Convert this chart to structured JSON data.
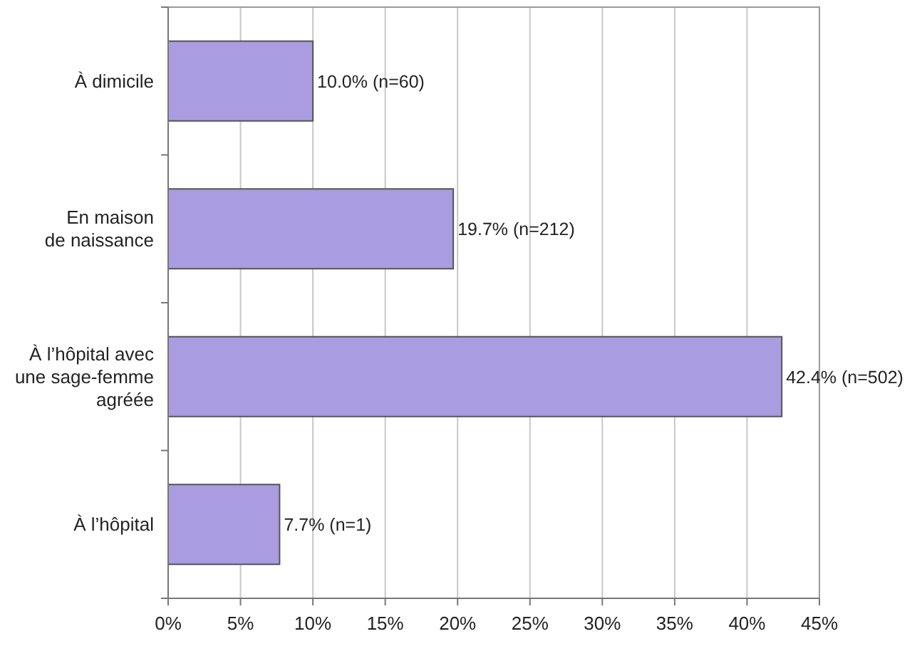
{
  "chart_data": {
    "type": "bar",
    "orientation": "horizontal",
    "categories": [
      "À dimicile",
      "En maison\nde naissance",
      "À l’hôpital avec\nune sage-femme\nagréée",
      "À l’hôpital"
    ],
    "values": [
      10.0,
      19.7,
      42.4,
      7.7
    ],
    "value_labels": [
      "10.0% (n=60)",
      "19.7% (n=212)",
      "42.4% (n=502)",
      "7.7% (n=1)"
    ],
    "color": "#a99ce0",
    "xlim": [
      0,
      45
    ],
    "xticks": [
      {
        "value": 0,
        "label": "0%"
      },
      {
        "value": 5,
        "label": "5%"
      },
      {
        "value": 10,
        "label": "10%"
      },
      {
        "value": 15,
        "label": "15%"
      },
      {
        "value": 20,
        "label": "20%"
      },
      {
        "value": 25,
        "label": "25%"
      },
      {
        "value": 30,
        "label": "30%"
      },
      {
        "value": 35,
        "label": "35%"
      },
      {
        "value": 40,
        "label": "40%"
      },
      {
        "value": 45,
        "label": "45%"
      }
    ],
    "grid": "x"
  }
}
